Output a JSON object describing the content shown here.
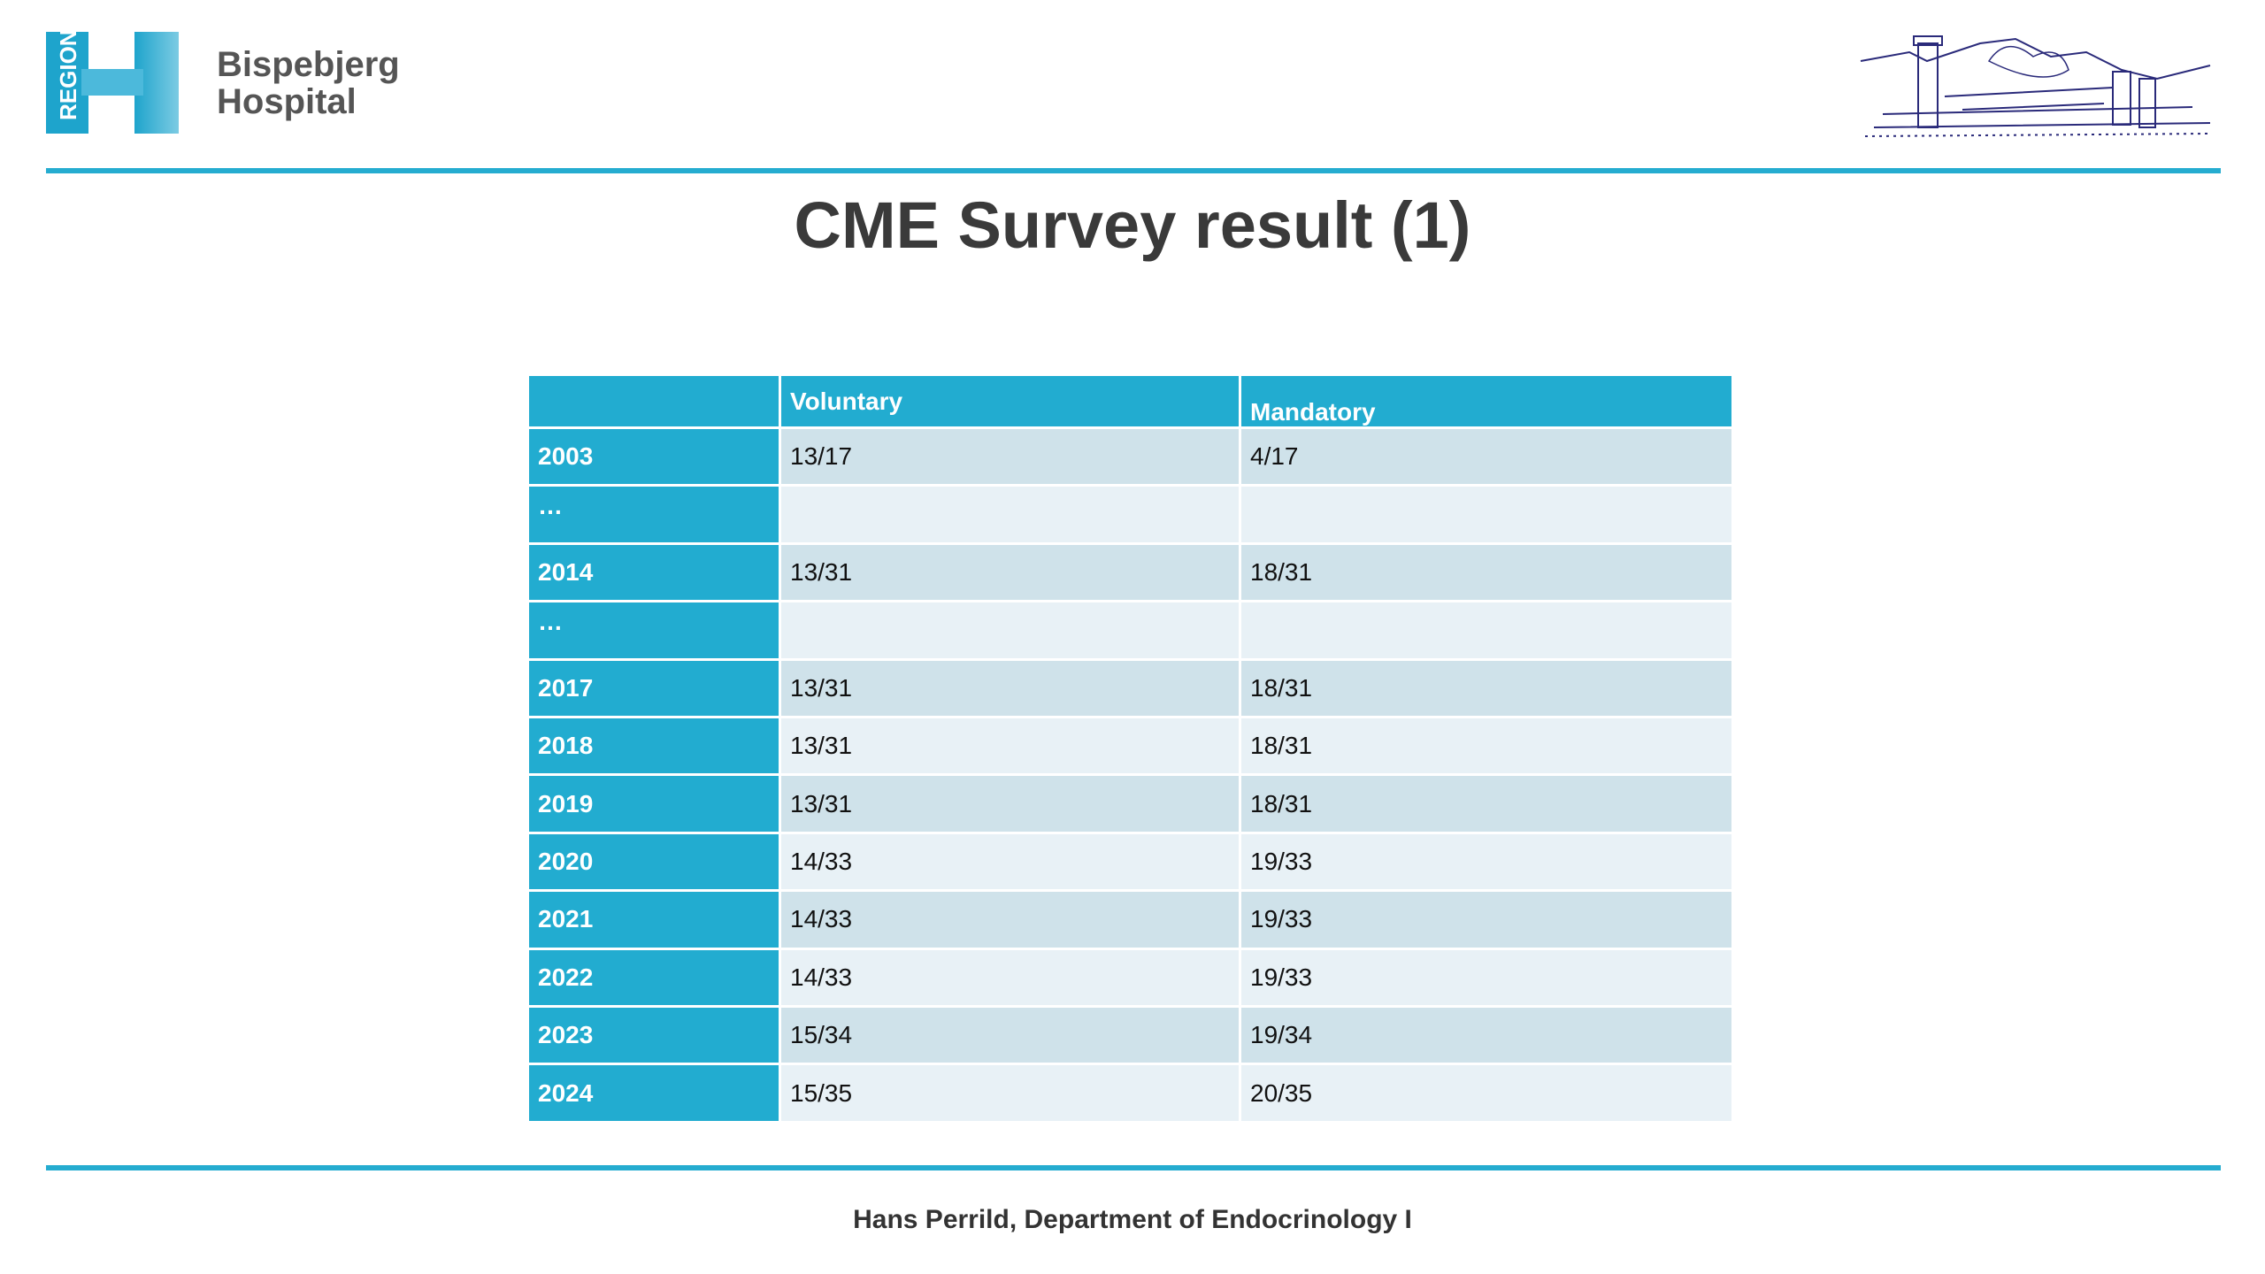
{
  "header": {
    "logo_text": "REGION",
    "logo_letter": "H",
    "hospital_line1": "Bispebjerg",
    "hospital_line2": "Hospital"
  },
  "title": "CME Survey result (1)",
  "table": {
    "columns": [
      "Voluntary",
      "Mandatory"
    ],
    "rows": [
      [
        "2003",
        "13/17",
        "4/17"
      ],
      [
        "…"
      ],
      [
        "2014",
        "13/31",
        "18/31"
      ],
      [
        "…"
      ],
      [
        "2017",
        "13/31",
        "18/31"
      ],
      [
        "2018",
        "13/31",
        "18/31"
      ],
      [
        "2019",
        "13/31",
        "18/31"
      ],
      [
        "2020",
        "14/33",
        "19/33"
      ],
      [
        "2021",
        "14/33",
        "19/33"
      ],
      [
        "2022",
        "14/33",
        "19/33"
      ],
      [
        "2023",
        "15/34",
        "19/34"
      ],
      [
        "2024",
        "15/35",
        "20/35"
      ]
    ]
  },
  "footer": "Hans Perrild, Department of Endocrinology I"
}
